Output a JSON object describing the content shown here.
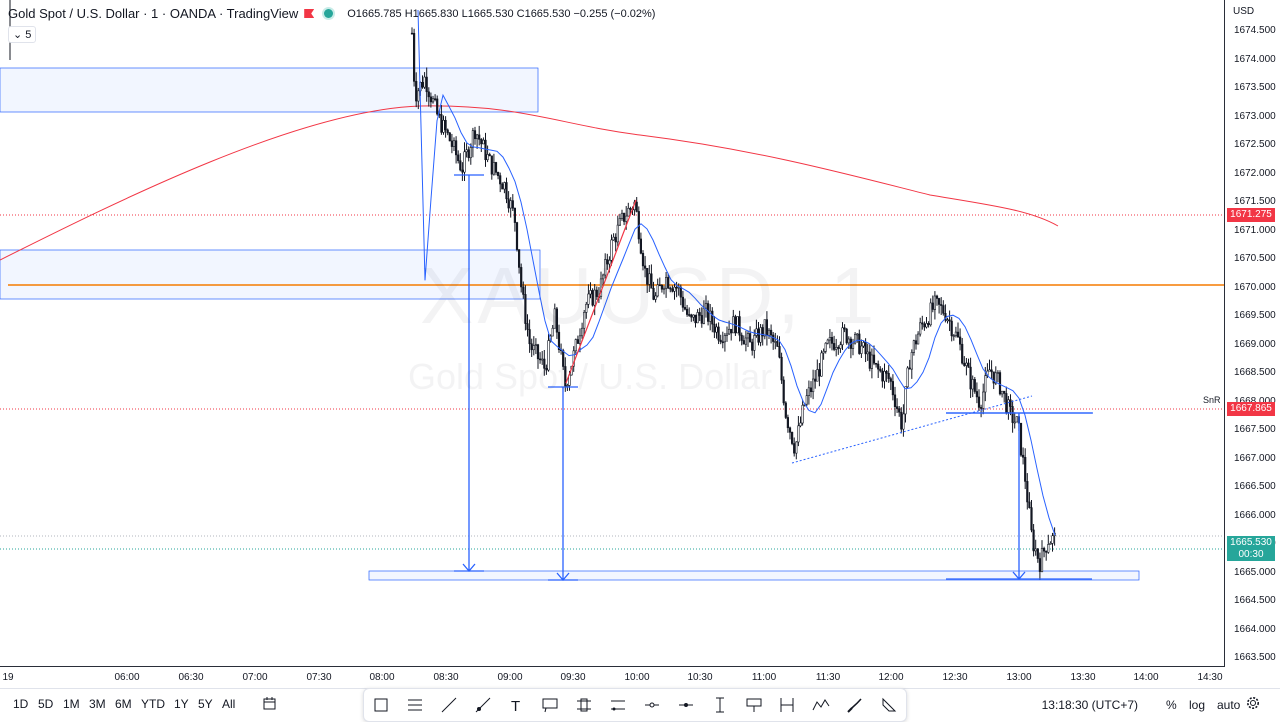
{
  "legend": {
    "title": "Gold Spot / U.S. Dollar · 1 · OANDA · TradingView",
    "ohlc": "O1665.785 H1665.830 L1665.530 C1665.530 −0.255 (−0.02%)",
    "indicator_count": "5"
  },
  "watermark": {
    "symbol": "XAUUSD, 1",
    "name": "Gold Spot / U.S. Dollar"
  },
  "price_axis": {
    "currency": "USD",
    "ticks": [
      "1674.500",
      "1674.000",
      "1673.500",
      "1673.000",
      "1672.500",
      "1672.000",
      "1671.500",
      "1671.000",
      "1670.500",
      "1670.000",
      "1669.500",
      "1669.000",
      "1668.500",
      "1668.000",
      "1667.500",
      "1667.000",
      "1666.500",
      "1666.000",
      "1665.500",
      "1665.000",
      "1664.500",
      "1664.000",
      "1663.500"
    ],
    "labels": {
      "ma_price": "1671.275",
      "snr_price": "1667.865",
      "last_price": "1665.530",
      "countdown": "00:30"
    }
  },
  "time_axis": {
    "ticks": [
      "19",
      "06:00",
      "06:30",
      "07:00",
      "07:30",
      "08:00",
      "08:30",
      "09:00",
      "09:30",
      "10:00",
      "10:30",
      "11:00",
      "11:30",
      "12:00",
      "12:30",
      "13:00",
      "13:30",
      "14:00",
      "14:30"
    ]
  },
  "annotation": {
    "snr_label": "SnR"
  },
  "bottom": {
    "ranges": [
      "1D",
      "5D",
      "1M",
      "3M",
      "6M",
      "YTD",
      "1Y",
      "5Y",
      "All"
    ],
    "clock": "13:18:30 (UTC+7)",
    "percent": "%",
    "log": "log",
    "auto": "auto"
  },
  "drawing_tools": [
    "rectangle-icon",
    "fib-icon",
    "trendline-icon",
    "ray-icon",
    "text-icon",
    "callout-icon",
    "pattern-icon",
    "parallel-channel-icon",
    "horizontal-ray-icon",
    "horizontal-line-icon",
    "vertical-line-icon",
    "price-label-icon",
    "date-range-icon",
    "xabcd-icon",
    "brush-icon",
    "arrow-icon"
  ],
  "colors": {
    "up": "#131722",
    "down": "#131722",
    "ma_fast": "#2962ff",
    "ma_slow": "#f23645",
    "orange_level": "#f57c00",
    "last_price_label": "#26a69a",
    "level_label": "#f23645"
  }
}
